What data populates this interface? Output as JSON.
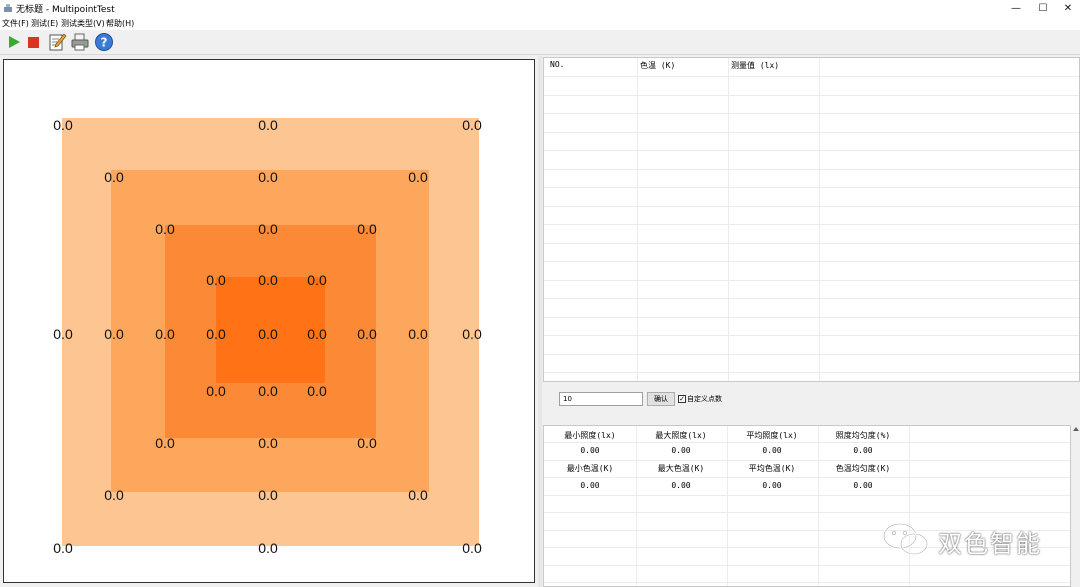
{
  "window": {
    "title": "无标题 - MultipointTest",
    "minimize_glyph": "—",
    "maximize_glyph": "☐",
    "close_glyph": "✕"
  },
  "menu": [
    "文件(F)",
    "测试(E)",
    "测试类型(V)",
    "帮助(H)"
  ],
  "toolbar": {
    "icons": [
      "play-icon",
      "stop-icon",
      "edit-icon",
      "printer-icon",
      "help-icon"
    ]
  },
  "heatmap": {
    "colors": [
      "#fdc592",
      "#fda75c",
      "#fb8935",
      "#ff7216"
    ],
    "background": "#ffffff",
    "point_value": "0.0"
  },
  "table_top": {
    "headers": [
      "NO.",
      "色温 (K)",
      "测量值 (lx)"
    ]
  },
  "input_row": {
    "value": "10",
    "confirm_label": "确认",
    "checkbox_checked": true,
    "checkbox_label": "自定义点数"
  },
  "stats": {
    "row1_headers": [
      "最小照度(lx)",
      "最大照度(lx)",
      "平均照度(lx)",
      "照度均匀度(%)"
    ],
    "row1_values": [
      "0.00",
      "0.00",
      "0.00",
      "0.00"
    ],
    "row2_headers": [
      "最小色温(K)",
      "最大色温(K)",
      "平均色温(K)",
      "色温均匀度(K)"
    ],
    "row2_values": [
      "0.00",
      "0.00",
      "0.00",
      "0.00"
    ]
  },
  "watermark": {
    "text": "双色智能"
  }
}
